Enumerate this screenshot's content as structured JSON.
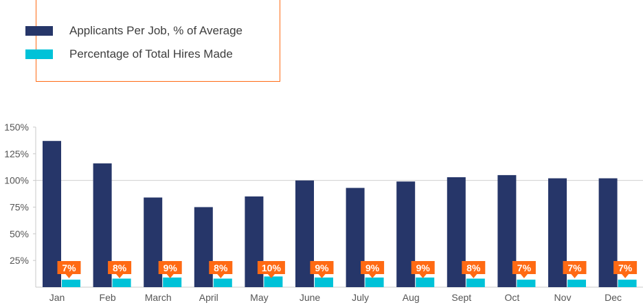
{
  "chart_data": {
    "type": "bar",
    "categories": [
      "Jan",
      "Feb",
      "March",
      "April",
      "May",
      "June",
      "July",
      "Aug",
      "Sept",
      "Oct",
      "Nov",
      "Dec"
    ],
    "series": [
      {
        "name": "Applicants Per Job, % of Average",
        "values": [
          137,
          116,
          84,
          75,
          85,
          100,
          93,
          99,
          103,
          105,
          102,
          102
        ],
        "color": "#263669"
      },
      {
        "name": "Percentage of Total Hires Made",
        "values": [
          7,
          8,
          9,
          8,
          10,
          9,
          9,
          9,
          8,
          7,
          7,
          7
        ],
        "color": "#00c2d8",
        "data_labels": [
          "7%",
          "8%",
          "9%",
          "8%",
          "10%",
          "9%",
          "9%",
          "9%",
          "8%",
          "7%",
          "7%",
          "7%"
        ]
      }
    ],
    "data_label_color": "#ff6a13",
    "y_ticks": [
      "25%",
      "50%",
      "75%",
      "100%",
      "125%",
      "150%"
    ],
    "y_tick_values": [
      25,
      50,
      75,
      100,
      125,
      150
    ],
    "ylim": [
      0,
      150
    ],
    "reference_line": 100,
    "legend_position": "top-left",
    "title": "",
    "xlabel": "",
    "ylabel": ""
  }
}
